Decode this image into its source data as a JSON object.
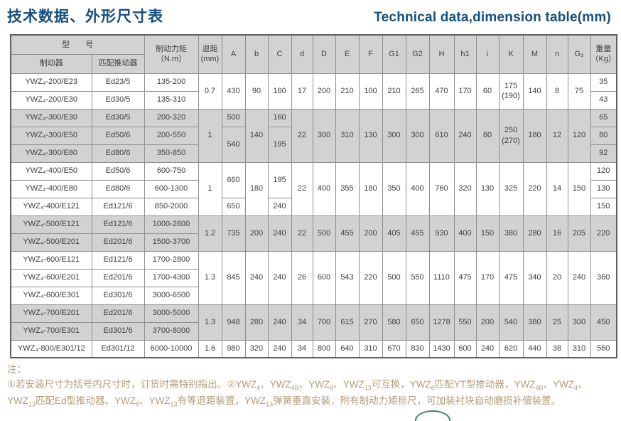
{
  "titles": {
    "zh": "技术数据、外形尺寸表",
    "en": "Technical data,dimension table(mm)"
  },
  "colors": {
    "title_blue": "#174f7c",
    "note_tan": "#b29d79",
    "row_shade": "#d2d2d2",
    "grid_border": "#8f8f8f",
    "cell_text": "#3f3f3f",
    "logo_green": "#3a8a57"
  },
  "table": {
    "header": {
      "model": "型　　号",
      "brake": "制动器",
      "thruster": "匹配推动器",
      "torque": "制动力矩\n（N.m）",
      "retreat": "退距\n(mm)",
      "dims": [
        "A",
        "b",
        "C",
        "d",
        "D",
        "E",
        "F",
        "G1",
        "G2",
        "H",
        "h1",
        "i",
        "K",
        "M",
        "n",
        "G₃"
      ],
      "weight": "重量\n（Kg）"
    },
    "groups": [
      {
        "shade": false,
        "rows": [
          [
            "YWZ₄-200/E23",
            "Ed23/5",
            "135-200",
            {
              "t": "0.7",
              "r": 2
            },
            {
              "t": "430",
              "r": 2
            },
            {
              "t": "90",
              "r": 2
            },
            {
              "t": "160",
              "r": 2
            },
            {
              "t": "17",
              "r": 2
            },
            {
              "t": "200",
              "r": 2
            },
            {
              "t": "210",
              "r": 2
            },
            {
              "t": "100",
              "r": 2
            },
            {
              "t": "210",
              "r": 2
            },
            {
              "t": "265",
              "r": 2
            },
            {
              "t": "470",
              "r": 2
            },
            {
              "t": "170",
              "r": 2
            },
            {
              "t": "60",
              "r": 2
            },
            {
              "t": "175\n(190)",
              "r": 2
            },
            {
              "t": "140",
              "r": 2
            },
            {
              "t": "8",
              "r": 2
            },
            {
              "t": "75",
              "r": 2
            },
            "35"
          ],
          [
            "YWZ₄-200/E30",
            "Ed30/5",
            "135-310",
            "43"
          ]
        ]
      },
      {
        "shade": true,
        "rows": [
          [
            "YWZ₄-300/E30",
            "Ed30/5",
            "200-320",
            {
              "t": "1",
              "r": 3
            },
            "500",
            {
              "t": "140",
              "r": 3
            },
            "160",
            {
              "t": "22",
              "r": 3
            },
            {
              "t": "300",
              "r": 3
            },
            {
              "t": "310",
              "r": 3
            },
            {
              "t": "130",
              "r": 3
            },
            {
              "t": "300",
              "r": 3
            },
            {
              "t": "300",
              "r": 3
            },
            {
              "t": "610",
              "r": 3
            },
            {
              "t": "240",
              "r": 3
            },
            {
              "t": "80",
              "r": 3
            },
            {
              "t": "250\n(270)",
              "r": 3
            },
            {
              "t": "180",
              "r": 3
            },
            {
              "t": "12",
              "r": 3
            },
            {
              "t": "120",
              "r": 3
            },
            "65"
          ],
          [
            "YWZ₄-300/E50",
            "Ed50/6",
            "200-550",
            {
              "t": "540",
              "r": 2
            },
            {
              "t": "195",
              "r": 2
            },
            "80"
          ],
          [
            "YWZ₄-300/E80",
            "Ed80/6",
            "350-850",
            "92"
          ]
        ]
      },
      {
        "shade": false,
        "rows": [
          [
            "YWZ₄-400/E50",
            "Ed50/6",
            "600-750",
            {
              "t": "1",
              "r": 3
            },
            {
              "t": "660",
              "r": 2
            },
            {
              "t": "180",
              "r": 3
            },
            {
              "t": "195",
              "r": 2
            },
            {
              "t": "22",
              "r": 3
            },
            {
              "t": "400",
              "r": 3
            },
            {
              "t": "355",
              "r": 3
            },
            {
              "t": "180",
              "r": 3
            },
            {
              "t": "350",
              "r": 3
            },
            {
              "t": "400",
              "r": 3
            },
            {
              "t": "760",
              "r": 3
            },
            {
              "t": "320",
              "r": 3
            },
            {
              "t": "130",
              "r": 3
            },
            {
              "t": "325",
              "r": 3
            },
            {
              "t": "220",
              "r": 3
            },
            {
              "t": "14",
              "r": 3
            },
            {
              "t": "150",
              "r": 3
            },
            "120"
          ],
          [
            "YWZ₄-400/E80",
            "Ed80/6",
            "600-1300",
            "130"
          ],
          [
            "YWZ₄-400/E121",
            "Ed121/6",
            "850-2000",
            "650",
            "240",
            "150"
          ]
        ]
      },
      {
        "shade": true,
        "rows": [
          [
            "YWZ₄-500/E121",
            "Ed121/6",
            "1000-2600",
            {
              "t": "1.2",
              "r": 2
            },
            {
              "t": "735",
              "r": 2
            },
            {
              "t": "200",
              "r": 2
            },
            {
              "t": "240",
              "r": 2
            },
            {
              "t": "22",
              "r": 2
            },
            {
              "t": "500",
              "r": 2
            },
            {
              "t": "455",
              "r": 2
            },
            {
              "t": "200",
              "r": 2
            },
            {
              "t": "405",
              "r": 2
            },
            {
              "t": "455",
              "r": 2
            },
            {
              "t": "930",
              "r": 2
            },
            {
              "t": "400",
              "r": 2
            },
            {
              "t": "150",
              "r": 2
            },
            {
              "t": "380",
              "r": 2
            },
            {
              "t": "280",
              "r": 2
            },
            {
              "t": "16",
              "r": 2
            },
            {
              "t": "205",
              "r": 2
            },
            {
              "t": "220",
              "r": 2
            }
          ],
          [
            "YWZ₄-500/E201",
            "Ed201/6",
            "1500-3700"
          ]
        ]
      },
      {
        "shade": false,
        "rows": [
          [
            "YWZ₄-600/E121",
            "Ed121/6",
            "1700-2800",
            {
              "t": "1.3",
              "r": 3
            },
            {
              "t": "845",
              "r": 3
            },
            {
              "t": "240",
              "r": 3
            },
            {
              "t": "240",
              "r": 3
            },
            {
              "t": "26",
              "r": 3
            },
            {
              "t": "600",
              "r": 3
            },
            {
              "t": "543",
              "r": 3
            },
            {
              "t": "220",
              "r": 3
            },
            {
              "t": "500",
              "r": 3
            },
            {
              "t": "550",
              "r": 3
            },
            {
              "t": "1110",
              "r": 3
            },
            {
              "t": "475",
              "r": 3
            },
            {
              "t": "170",
              "r": 3
            },
            {
              "t": "475",
              "r": 3
            },
            {
              "t": "340",
              "r": 3
            },
            {
              "t": "20",
              "r": 3
            },
            {
              "t": "240",
              "r": 3
            },
            {
              "t": "360",
              "r": 3
            }
          ],
          [
            "YWZ₄-600/E201",
            "Ed201/6",
            "1700-4300"
          ],
          [
            "YWZ₄-600/E301",
            "Ed301/6",
            "3000-6500"
          ]
        ]
      },
      {
        "shade": true,
        "rows": [
          [
            "YWZ₄-700/E201",
            "Ed201/6",
            "3000-5000",
            {
              "t": "1.3",
              "r": 2
            },
            {
              "t": "948",
              "r": 2
            },
            {
              "t": "280",
              "r": 2
            },
            {
              "t": "240",
              "r": 2
            },
            {
              "t": "34",
              "r": 2
            },
            {
              "t": "700",
              "r": 2
            },
            {
              "t": "615",
              "r": 2
            },
            {
              "t": "270",
              "r": 2
            },
            {
              "t": "580",
              "r": 2
            },
            {
              "t": "650",
              "r": 2
            },
            {
              "t": "1278",
              "r": 2
            },
            {
              "t": "550",
              "r": 2
            },
            {
              "t": "200",
              "r": 2
            },
            {
              "t": "540",
              "r": 2
            },
            {
              "t": "380",
              "r": 2
            },
            {
              "t": "25",
              "r": 2
            },
            {
              "t": "300",
              "r": 2
            },
            {
              "t": "450",
              "r": 2
            }
          ],
          [
            "YWZ₄-700/E301",
            "Ed301/6",
            "3700-8000"
          ]
        ]
      },
      {
        "shade": false,
        "rows": [
          [
            "YWZ₄-800/E301/12",
            "Ed301/12",
            "6000-10000",
            "1.6",
            "980",
            "320",
            "240",
            "34",
            "800",
            "640",
            "310",
            "670",
            "830",
            "1430",
            "600",
            "240",
            "620",
            "440",
            "38",
            "310",
            "560"
          ]
        ]
      }
    ]
  },
  "notes": {
    "label": "注：",
    "segments": [
      {
        "t": "①若安装尺寸为括号内尺寸时，订货时需特别指出。②YWZ"
      },
      {
        "t": "4",
        "sub": true
      },
      {
        "t": "、YWZ"
      },
      {
        "t": "4B",
        "sub": true
      },
      {
        "t": "、YWZ"
      },
      {
        "t": "8",
        "sub": true
      },
      {
        "t": "、YWZ"
      },
      {
        "t": "13",
        "sub": true
      },
      {
        "t": "可互换，YWZ"
      },
      {
        "t": "8",
        "sub": true
      },
      {
        "t": "匹配YT型推动器，YWZ"
      },
      {
        "t": "4B",
        "sub": true
      },
      {
        "t": "、YWZ"
      },
      {
        "t": "4",
        "sub": true
      },
      {
        "t": "、YWZ"
      },
      {
        "t": "13",
        "sub": true
      },
      {
        "t": "匹配Ed型推动器。YWZ"
      },
      {
        "t": "8",
        "sub": true
      },
      {
        "t": "、YWZ"
      },
      {
        "t": "13",
        "sub": true
      },
      {
        "t": "有等退距装置，YWZ"
      },
      {
        "t": "13",
        "sub": true
      },
      {
        "t": "弹簧垂直安装，附有制动力矩标尺，可加装衬块自动磨损补偿装置。"
      }
    ]
  }
}
